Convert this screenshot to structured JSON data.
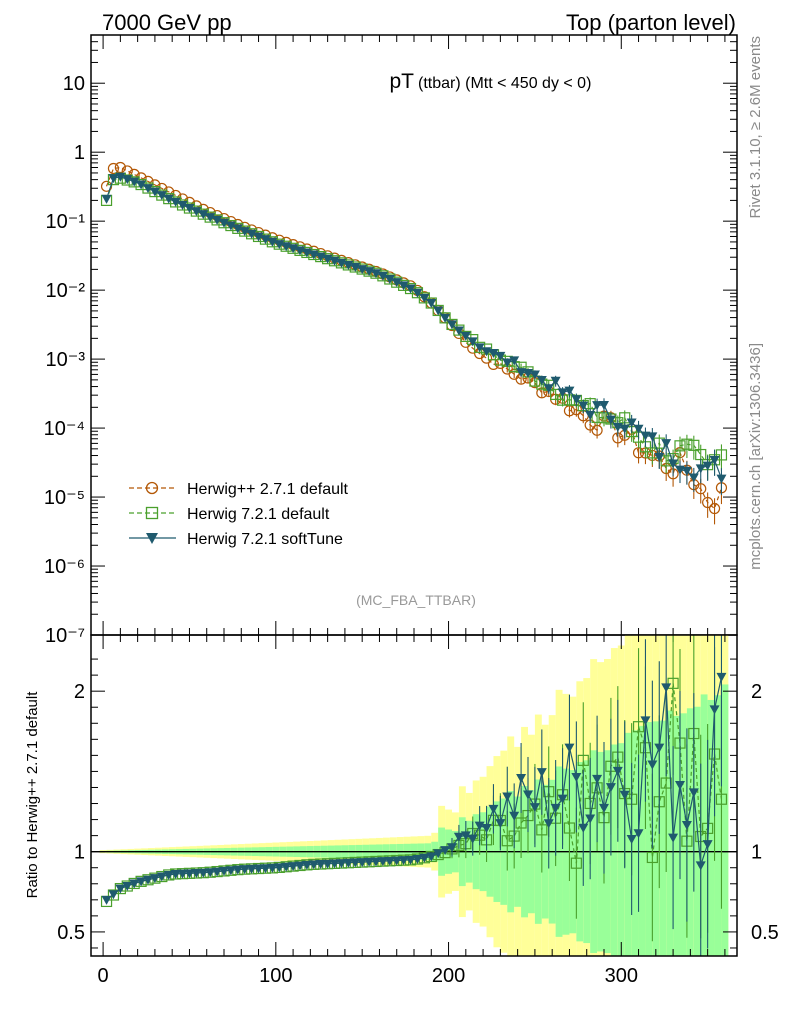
{
  "header": {
    "left": "7000 GeV pp",
    "right": "Top (parton level)"
  },
  "side_labels": {
    "rivet": "Rivet 3.1.10, ≥ 2.6M events",
    "mcplots": "mcplots.cern.ch [arXiv:1306.3436]"
  },
  "chart_data": [
    {
      "type": "scatter",
      "panel": "main",
      "title_main": "pT",
      "title_sub": "(ttbar) (Mtt < 450 dy < 0)",
      "analysis_tag": "(MC_FBA_TTBAR)",
      "yscale": "log",
      "ylim": [
        1e-07,
        50
      ],
      "xlim": [
        -7,
        367
      ],
      "y_tick_labels": [
        "10",
        "1",
        "10⁻¹",
        "10⁻²",
        "10⁻³",
        "10⁻⁴",
        "10⁻⁵",
        "10⁻⁶",
        "10⁻⁷"
      ],
      "legend_position": "lower-left",
      "legend": [
        {
          "name": "Herwig++ 2.7.1 default",
          "color": "#b35806",
          "marker": "open-circle",
          "line": "dashed"
        },
        {
          "name": "Herwig 7.2.1 default",
          "color": "#4aa02c",
          "marker": "open-square",
          "line": "dashed"
        },
        {
          "name": "Herwig 7.2.1 softTune",
          "color": "#1f5a6e",
          "marker": "filled-triangle-down",
          "line": "solid"
        }
      ],
      "series": [
        {
          "name": "Herwig++ 2.7.1 default",
          "anchors": [
            [
              2,
              0.32
            ],
            [
              6,
              0.58
            ],
            [
              10,
              0.6
            ],
            [
              20,
              0.45
            ],
            [
              40,
              0.25
            ],
            [
              60,
              0.14
            ],
            [
              80,
              0.085
            ],
            [
              100,
              0.055
            ],
            [
              120,
              0.038
            ],
            [
              140,
              0.026
            ],
            [
              160,
              0.018
            ],
            [
              180,
              0.011
            ],
            [
              190,
              0.0065
            ],
            [
              200,
              0.0035
            ],
            [
              210,
              0.0018
            ],
            [
              220,
              0.0011
            ],
            [
              240,
              0.00058
            ],
            [
              260,
              0.00032
            ],
            [
              280,
              0.00014
            ],
            [
              300,
              9e-05
            ],
            [
              320,
              3.5e-05
            ],
            [
              340,
              2.5e-05
            ],
            [
              348,
              1e-05
            ],
            [
              360,
              1e-05
            ]
          ]
        },
        {
          "name": "Herwig 7.2.1 default",
          "anchors": [
            [
              2,
              0.2
            ],
            [
              6,
              0.4
            ],
            [
              10,
              0.42
            ],
            [
              20,
              0.36
            ],
            [
              40,
              0.2
            ],
            [
              60,
              0.12
            ],
            [
              80,
              0.075
            ],
            [
              100,
              0.048
            ],
            [
              120,
              0.034
            ],
            [
              140,
              0.024
            ],
            [
              160,
              0.017
            ],
            [
              180,
              0.01
            ],
            [
              190,
              0.0065
            ],
            [
              200,
              0.0035
            ],
            [
              210,
              0.0022
            ],
            [
              220,
              0.0014
            ],
            [
              240,
              0.00075
            ],
            [
              260,
              0.0004
            ],
            [
              280,
              0.00018
            ],
            [
              300,
              0.00012
            ],
            [
              320,
              5e-05
            ],
            [
              340,
              4e-05
            ],
            [
              350,
              2e-05
            ],
            [
              360,
              4e-05
            ]
          ]
        },
        {
          "name": "Herwig 7.2.1 softTune",
          "anchors": [
            [
              2,
              0.21
            ],
            [
              6,
              0.42
            ],
            [
              10,
              0.44
            ],
            [
              20,
              0.36
            ],
            [
              40,
              0.2
            ],
            [
              60,
              0.12
            ],
            [
              80,
              0.075
            ],
            [
              100,
              0.048
            ],
            [
              120,
              0.034
            ],
            [
              140,
              0.024
            ],
            [
              160,
              0.017
            ],
            [
              180,
              0.01
            ],
            [
              190,
              0.0065
            ],
            [
              200,
              0.0035
            ],
            [
              210,
              0.0022
            ],
            [
              220,
              0.0014
            ],
            [
              240,
              0.0008
            ],
            [
              260,
              0.00042
            ],
            [
              280,
              0.0002
            ],
            [
              300,
              0.00014
            ],
            [
              320,
              5e-05
            ],
            [
              340,
              3.5e-05
            ],
            [
              350,
              2e-05
            ],
            [
              360,
              3e-05
            ]
          ]
        }
      ]
    },
    {
      "type": "line",
      "panel": "ratio",
      "ylabel": "Ratio to Herwig++ 2.7.1 default",
      "ylim": [
        0.35,
        2.35
      ],
      "y_ticks": [
        0.5,
        1,
        2
      ],
      "y_tick_labels": [
        "0.5",
        "1",
        "2"
      ],
      "x_ticks": [
        0,
        100,
        200,
        300
      ],
      "x_tick_labels": [
        "0",
        "100",
        "200",
        "300"
      ],
      "bands": [
        {
          "name": "yellow band",
          "color": "#ffff99"
        },
        {
          "name": "green band",
          "color": "#99ff99"
        }
      ],
      "series": [
        {
          "name": "Herwig 7.2.1 default",
          "anchors": [
            [
              2,
              0.69
            ],
            [
              10,
              0.77
            ],
            [
              20,
              0.81
            ],
            [
              40,
              0.86
            ],
            [
              60,
              0.87
            ],
            [
              80,
              0.89
            ],
            [
              100,
              0.9
            ],
            [
              120,
              0.92
            ],
            [
              140,
              0.93
            ],
            [
              160,
              0.94
            ],
            [
              180,
              0.95
            ],
            [
              190,
              0.97
            ],
            [
              200,
              1.0
            ],
            [
              210,
              1.05
            ],
            [
              220,
              1.08
            ],
            [
              240,
              1.1
            ],
            [
              260,
              1.12
            ],
            [
              280,
              1.25
            ],
            [
              300,
              1.35
            ],
            [
              320,
              1.45
            ],
            [
              340,
              1.5
            ],
            [
              360,
              1.6
            ]
          ]
        },
        {
          "name": "Herwig 7.2.1 softTune",
          "anchors": [
            [
              2,
              0.7
            ],
            [
              10,
              0.77
            ],
            [
              20,
              0.81
            ],
            [
              40,
              0.86
            ],
            [
              60,
              0.87
            ],
            [
              80,
              0.89
            ],
            [
              100,
              0.9
            ],
            [
              120,
              0.92
            ],
            [
              140,
              0.93
            ],
            [
              160,
              0.94
            ],
            [
              180,
              0.95
            ],
            [
              190,
              0.97
            ],
            [
              200,
              1.02
            ],
            [
              210,
              1.1
            ],
            [
              220,
              1.2
            ],
            [
              240,
              1.3
            ],
            [
              260,
              1.35
            ],
            [
              280,
              1.45
            ],
            [
              300,
              1.5
            ],
            [
              320,
              1.6
            ],
            [
              340,
              1.5
            ],
            [
              360,
              1.6
            ]
          ]
        }
      ]
    }
  ]
}
